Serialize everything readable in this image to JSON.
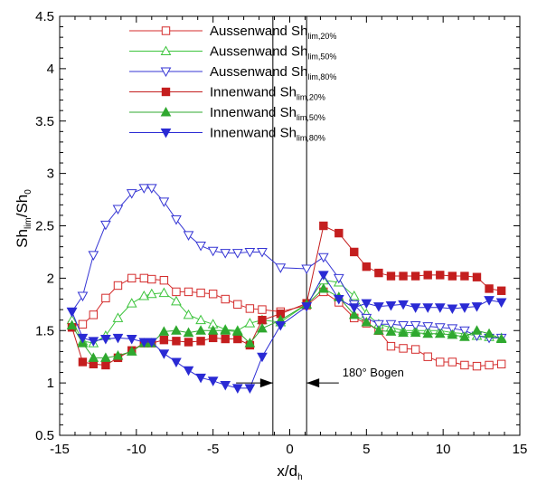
{
  "chart_data": {
    "type": "line",
    "xlabel": {
      "main": "x/d",
      "sub": "h"
    },
    "ylabel": {
      "main": "Sh",
      "sub": "lim",
      "rest": "/Sh",
      "sub2": "0"
    },
    "xlim": [
      -15,
      15
    ],
    "ylim": [
      0.5,
      4.5
    ],
    "xticks": [
      "-15",
      "-10",
      "-5",
      "0",
      "5",
      "10",
      "15"
    ],
    "xtick_values": [
      -15,
      -10,
      -5,
      0,
      5,
      10,
      15
    ],
    "yticks": [
      "0.5",
      "1",
      "1.5",
      "2",
      "2.5",
      "3",
      "3.5",
      "4",
      "4.5"
    ],
    "ytick_values": [
      0.5,
      1,
      1.5,
      2,
      2.5,
      3,
      3.5,
      4,
      4.5
    ],
    "grid": false,
    "legend_position": "top-left",
    "vlines": [
      -1.1,
      1.1
    ],
    "annotation": {
      "text": "180° Bogen",
      "arrow_from_x": -3.5,
      "arrow_to_x": -1.1,
      "arrow2_from_x": 3.2,
      "arrow2_to_x": 1.1,
      "y": 1
    },
    "series": [
      {
        "name": "Aussenwand Sh",
        "sub": "lim,20%",
        "color": "#d42b2b",
        "marker": "square-open",
        "x": [
          -14.2,
          -13.5,
          -12.8,
          -12.0,
          -11.2,
          -10.3,
          -9.5,
          -9.0,
          -8.2,
          -7.4,
          -6.6,
          -5.8,
          -5.0,
          -4.2,
          -3.4,
          -2.6,
          -1.8,
          -0.6,
          1.1,
          2.2,
          3.2,
          4.2,
          5.0,
          5.8,
          6.6,
          7.4,
          8.2,
          9.0,
          9.8,
          10.6,
          11.4,
          12.2,
          13.0,
          13.8
        ],
        "y": [
          1.55,
          1.56,
          1.65,
          1.81,
          1.93,
          2.0,
          2.0,
          1.99,
          1.98,
          1.87,
          1.87,
          1.86,
          1.85,
          1.8,
          1.75,
          1.71,
          1.7,
          1.68,
          1.74,
          1.87,
          1.77,
          1.62,
          1.57,
          1.5,
          1.35,
          1.33,
          1.32,
          1.25,
          1.2,
          1.2,
          1.17,
          1.16,
          1.17,
          1.18
        ]
      },
      {
        "name": "Aussenwand Sh",
        "sub": "lim,50%",
        "color": "#3cc43c",
        "marker": "triangle-up-open",
        "x": [
          -14.2,
          -13.5,
          -12.8,
          -12.0,
          -11.2,
          -10.3,
          -9.5,
          -9.0,
          -8.2,
          -7.4,
          -6.6,
          -5.8,
          -5.0,
          -4.2,
          -3.4,
          -2.6,
          -1.8,
          -0.6,
          1.1,
          2.2,
          3.2,
          4.2,
          5.0,
          5.8,
          6.6,
          7.4,
          8.2,
          9.0,
          9.8,
          10.6,
          11.4,
          12.2,
          13.0,
          13.8
        ],
        "y": [
          1.6,
          1.4,
          1.38,
          1.45,
          1.62,
          1.76,
          1.83,
          1.85,
          1.86,
          1.78,
          1.65,
          1.6,
          1.56,
          1.51,
          1.5,
          1.57,
          1.6,
          1.58,
          1.75,
          1.98,
          1.96,
          1.83,
          1.66,
          1.56,
          1.53,
          1.5,
          1.5,
          1.5,
          1.5,
          1.48,
          1.47,
          1.45,
          1.44,
          1.43
        ]
      },
      {
        "name": "Aussenwand Sh",
        "sub": "lim,80%",
        "color": "#3535d4",
        "marker": "triangle-down-open",
        "x": [
          -14.2,
          -13.5,
          -12.8,
          -12.0,
          -11.2,
          -10.3,
          -9.5,
          -9.0,
          -8.2,
          -7.4,
          -6.6,
          -5.8,
          -5.0,
          -4.2,
          -3.4,
          -2.6,
          -1.8,
          -0.6,
          1.1,
          2.2,
          3.2,
          4.2,
          5.0,
          5.8,
          6.6,
          7.4,
          8.2,
          9.0,
          9.8,
          10.6,
          11.4,
          12.2,
          13.0,
          13.8
        ],
        "y": [
          1.68,
          1.83,
          2.22,
          2.51,
          2.66,
          2.81,
          2.86,
          2.86,
          2.73,
          2.56,
          2.41,
          2.31,
          2.26,
          2.24,
          2.24,
          2.25,
          2.25,
          2.1,
          2.09,
          2.2,
          2.0,
          1.75,
          1.62,
          1.56,
          1.56,
          1.55,
          1.55,
          1.54,
          1.53,
          1.52,
          1.5,
          1.45,
          1.43,
          1.43
        ]
      },
      {
        "name": "Innenwand Sh",
        "sub": "lim,20%",
        "color": "#c41e1e",
        "marker": "square-filled",
        "x": [
          -14.2,
          -13.5,
          -12.8,
          -12.0,
          -11.2,
          -10.3,
          -9.5,
          -9.0,
          -8.2,
          -7.4,
          -6.6,
          -5.8,
          -5.0,
          -4.2,
          -3.4,
          -2.6,
          -1.8,
          -0.6,
          1.1,
          2.2,
          3.2,
          4.2,
          5.0,
          5.8,
          6.6,
          7.4,
          8.2,
          9.0,
          9.8,
          10.6,
          11.4,
          12.2,
          13.0,
          13.8
        ],
        "y": [
          1.53,
          1.2,
          1.18,
          1.17,
          1.24,
          1.31,
          1.38,
          1.38,
          1.41,
          1.4,
          1.39,
          1.4,
          1.43,
          1.42,
          1.42,
          1.36,
          1.6,
          1.66,
          1.76,
          2.5,
          2.43,
          2.25,
          2.11,
          2.05,
          2.02,
          2.02,
          2.02,
          2.03,
          2.03,
          2.02,
          2.02,
          2.01,
          1.9,
          1.88
        ]
      },
      {
        "name": "Innenwand Sh",
        "sub": "lim,50%",
        "color": "#2fa82f",
        "marker": "triangle-up-filled",
        "x": [
          -14.2,
          -13.5,
          -12.8,
          -12.0,
          -11.2,
          -10.3,
          -9.5,
          -9.0,
          -8.2,
          -7.4,
          -6.6,
          -5.8,
          -5.0,
          -4.2,
          -3.4,
          -2.6,
          -1.8,
          -0.6,
          1.1,
          2.2,
          3.2,
          4.2,
          5.0,
          5.8,
          6.6,
          7.4,
          8.2,
          9.0,
          9.8,
          10.6,
          11.4,
          12.2,
          13.0,
          13.8
        ],
        "y": [
          1.55,
          1.38,
          1.24,
          1.24,
          1.26,
          1.3,
          1.38,
          1.38,
          1.49,
          1.5,
          1.48,
          1.5,
          1.5,
          1.5,
          1.49,
          1.38,
          1.52,
          1.6,
          1.75,
          1.9,
          1.82,
          1.65,
          1.58,
          1.5,
          1.49,
          1.48,
          1.48,
          1.47,
          1.47,
          1.46,
          1.44,
          1.5,
          1.47,
          1.42
        ]
      },
      {
        "name": "Innenwand Sh",
        "sub": "lim,80%",
        "color": "#2a2ad4",
        "marker": "triangle-down-filled",
        "x": [
          -14.2,
          -13.5,
          -12.8,
          -12.0,
          -11.2,
          -10.3,
          -9.5,
          -9.0,
          -8.2,
          -7.4,
          -6.6,
          -5.8,
          -5.0,
          -4.2,
          -3.4,
          -2.6,
          -1.8,
          -0.6,
          1.1,
          2.2,
          3.2,
          4.2,
          5.0,
          5.8,
          6.6,
          7.4,
          8.2,
          9.0,
          9.8,
          10.6,
          11.4,
          12.2,
          13.0,
          13.8
        ],
        "y": [
          1.68,
          1.43,
          1.4,
          1.42,
          1.43,
          1.42,
          1.39,
          1.39,
          1.28,
          1.2,
          1.12,
          1.05,
          1.02,
          0.98,
          0.95,
          0.95,
          1.25,
          1.55,
          1.73,
          2.03,
          1.8,
          1.72,
          1.76,
          1.73,
          1.74,
          1.75,
          1.72,
          1.72,
          1.72,
          1.71,
          1.72,
          1.73,
          1.79,
          1.77
        ]
      }
    ]
  }
}
